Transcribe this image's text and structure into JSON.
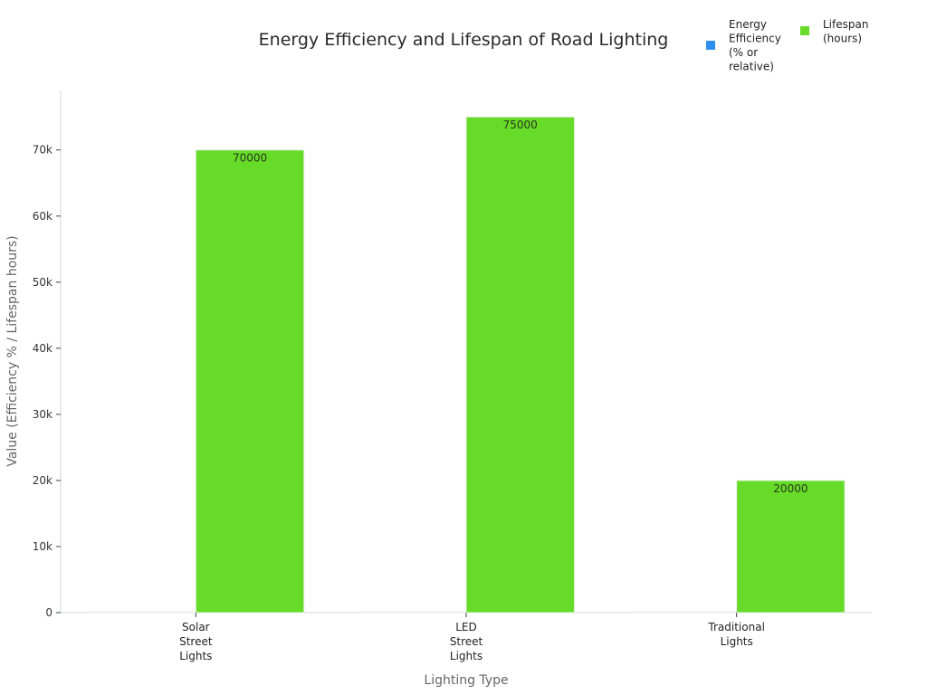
{
  "chart_data": {
    "type": "bar",
    "title": "Energy Efficiency and Lifespan of Road Lighting",
    "xlabel": "Lighting Type",
    "ylabel": "Value (Efficiency % / Lifespan hours)",
    "categories": [
      [
        "Solar",
        "Street",
        "Lights"
      ],
      [
        "LED",
        "Street",
        "Lights"
      ],
      [
        "Traditional",
        "Lights"
      ]
    ],
    "series": [
      {
        "name": [
          "Energy",
          "Efficiency",
          "(% or",
          "relative)"
        ],
        "color": "#2e8ff0",
        "values": [
          90,
          90,
          30
        ],
        "show_labels": false
      },
      {
        "name": [
          "Lifespan",
          "(hours)"
        ],
        "color": "#66db28",
        "values": [
          70000,
          75000,
          20000
        ],
        "show_labels": true
      }
    ],
    "ylim": [
      0,
      79000
    ],
    "yticks": [
      0,
      10000,
      20000,
      30000,
      40000,
      50000,
      60000,
      70000
    ],
    "ytick_labels": [
      "0",
      "10k",
      "20k",
      "30k",
      "40k",
      "50k",
      "60k",
      "70k"
    ],
    "grid": false,
    "legend_position": "top-right"
  }
}
